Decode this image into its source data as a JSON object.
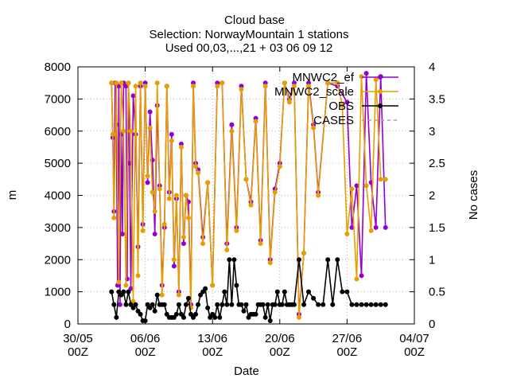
{
  "chart_data": {
    "type": "line",
    "title": "Cloud base",
    "subtitle_lines": [
      "Selection: NorwayMountain      1 stations",
      "Used 00,03,...,21 + 03 06 09 12"
    ],
    "xlabel": "Date",
    "ylabel": "m",
    "y2label": "No cases",
    "ylim": [
      0,
      8000
    ],
    "y2lim": [
      0,
      4
    ],
    "xlim": [
      "2024-05-30T00:00",
      "2024-07-04T00:00"
    ],
    "yticks": [
      0,
      1000,
      2000,
      3000,
      4000,
      5000,
      6000,
      7000,
      8000
    ],
    "y2ticks": [
      "0",
      "0.5",
      "1",
      "1.5",
      "2",
      "2.5",
      "3",
      "3.5",
      "4"
    ],
    "xticks": [
      {
        "t": "2024-05-30T00:00",
        "label1": "30/05",
        "label2": "00Z"
      },
      {
        "t": "2024-06-06T00:00",
        "label1": "06/06",
        "label2": "00Z"
      },
      {
        "t": "2024-06-13T00:00",
        "label1": "13/06",
        "label2": "00Z"
      },
      {
        "t": "2024-06-20T00:00",
        "label1": "20/06",
        "label2": "00Z"
      },
      {
        "t": "2024-06-27T00:00",
        "label1": "27/06",
        "label2": "00Z"
      },
      {
        "t": "2024-07-04T00:00",
        "label1": "04/07",
        "label2": "00Z"
      }
    ],
    "grid": true,
    "legend_position": "top-right",
    "series": [
      {
        "name": "MNWC2_ef",
        "color": "#9400d3",
        "axis": "y1",
        "marker": "circle",
        "x": [
          "2024-06-02T12:00",
          "2024-06-02T15:00",
          "2024-06-02T18:00",
          "2024-06-02T21:00",
          "2024-06-03T00:00",
          "2024-06-03T03:00",
          "2024-06-03T06:00",
          "2024-06-03T09:00",
          "2024-06-03T12:00",
          "2024-06-03T15:00",
          "2024-06-03T18:00",
          "2024-06-04T00:00",
          "2024-06-04T03:00",
          "2024-06-04T06:00",
          "2024-06-04T09:00",
          "2024-06-04T12:00",
          "2024-06-04T18:00",
          "2024-06-05T00:00",
          "2024-06-05T06:00",
          "2024-06-05T12:00",
          "2024-06-05T18:00",
          "2024-06-06T00:00",
          "2024-06-06T06:00",
          "2024-06-06T12:00",
          "2024-06-06T18:00",
          "2024-06-07T00:00",
          "2024-06-07T06:00",
          "2024-06-07T12:00",
          "2024-06-07T18:00",
          "2024-06-08T00:00",
          "2024-06-08T06:00",
          "2024-06-08T12:00",
          "2024-06-08T18:00",
          "2024-06-09T00:00",
          "2024-06-09T06:00",
          "2024-06-09T12:00",
          "2024-06-09T18:00",
          "2024-06-10T00:00",
          "2024-06-10T06:00",
          "2024-06-10T12:00",
          "2024-06-10T18:00",
          "2024-06-11T00:00",
          "2024-06-11T06:00",
          "2024-06-11T12:00",
          "2024-06-12T00:00",
          "2024-06-12T12:00",
          "2024-06-13T00:00",
          "2024-06-13T12:00",
          "2024-06-14T00:00",
          "2024-06-14T12:00",
          "2024-06-15T00:00",
          "2024-06-15T12:00",
          "2024-06-16T00:00",
          "2024-06-16T12:00",
          "2024-06-17T00:00",
          "2024-06-17T12:00",
          "2024-06-18T00:00",
          "2024-06-18T12:00",
          "2024-06-19T00:00",
          "2024-06-19T12:00",
          "2024-06-20T00:00",
          "2024-06-20T12:00",
          "2024-06-21T00:00",
          "2024-06-21T12:00",
          "2024-06-22T00:00",
          "2024-06-22T12:00",
          "2024-06-23T00:00",
          "2024-06-23T12:00",
          "2024-06-24T00:00",
          "2024-06-25T00:00",
          "2024-06-26T00:00",
          "2024-06-27T00:00",
          "2024-06-27T12:00",
          "2024-06-28T00:00",
          "2024-06-28T12:00",
          "2024-06-29T00:00",
          "2024-06-29T12:00",
          "2024-06-30T00:00",
          "2024-06-30T12:00",
          "2024-07-01T00:00"
        ],
        "y": [
          7500,
          5800,
          3500,
          7500,
          6200,
          1200,
          7400,
          600,
          5900,
          2800,
          7500,
          7400,
          1400,
          7500,
          5000,
          1100,
          7100,
          5900,
          2400,
          7400,
          3100,
          7500,
          4400,
          6600,
          5100,
          2800,
          6800,
          4300,
          1200,
          3000,
          7400,
          4100,
          5900,
          1800,
          3900,
          1000,
          5600,
          2500,
          4000,
          3800,
          600,
          7500,
          5000,
          4800,
          2700,
          4400,
          1200,
          7500,
          7500,
          2500,
          6200,
          3000,
          7400,
          4500,
          3800,
          6400,
          2600,
          7500,
          2000,
          4200,
          5000,
          7500,
          7000,
          7500,
          300,
          2200,
          7500,
          6200,
          4100,
          7500,
          7400,
          6900,
          3000,
          4300,
          1500,
          7800,
          4400,
          3000,
          7700,
          3000
        ]
      },
      {
        "name": "MNWC2_scale",
        "color": "#e69f00",
        "axis": "y1",
        "marker": "circle",
        "x": [
          "2024-06-02T12:00",
          "2024-06-02T15:00",
          "2024-06-02T18:00",
          "2024-06-03T00:00",
          "2024-06-03T06:00",
          "2024-06-03T12:00",
          "2024-06-03T18:00",
          "2024-06-04T00:00",
          "2024-06-04T06:00",
          "2024-06-04T12:00",
          "2024-06-04T18:00",
          "2024-06-05T00:00",
          "2024-06-05T06:00",
          "2024-06-05T12:00",
          "2024-06-05T18:00",
          "2024-06-06T00:00",
          "2024-06-06T06:00",
          "2024-06-06T12:00",
          "2024-06-06T18:00",
          "2024-06-07T00:00",
          "2024-06-07T06:00",
          "2024-06-07T12:00",
          "2024-06-07T18:00",
          "2024-06-08T00:00",
          "2024-06-08T06:00",
          "2024-06-08T12:00",
          "2024-06-08T18:00",
          "2024-06-09T00:00",
          "2024-06-09T06:00",
          "2024-06-09T12:00",
          "2024-06-09T18:00",
          "2024-06-10T00:00",
          "2024-06-10T06:00",
          "2024-06-10T12:00",
          "2024-06-10T18:00",
          "2024-06-11T00:00",
          "2024-06-11T06:00",
          "2024-06-11T12:00",
          "2024-06-12T00:00",
          "2024-06-12T12:00",
          "2024-06-13T00:00",
          "2024-06-13T12:00",
          "2024-06-14T00:00",
          "2024-06-14T12:00",
          "2024-06-15T00:00",
          "2024-06-15T12:00",
          "2024-06-16T00:00",
          "2024-06-16T12:00",
          "2024-06-17T00:00",
          "2024-06-17T12:00",
          "2024-06-18T00:00",
          "2024-06-18T12:00",
          "2024-06-19T00:00",
          "2024-06-19T12:00",
          "2024-06-20T00:00",
          "2024-06-20T12:00",
          "2024-06-21T00:00",
          "2024-06-21T12:00",
          "2024-06-22T00:00",
          "2024-06-22T12:00",
          "2024-06-23T00:00",
          "2024-06-23T12:00",
          "2024-06-24T00:00",
          "2024-06-25T00:00",
          "2024-06-26T00:00",
          "2024-06-26T12:00",
          "2024-06-27T00:00",
          "2024-06-27T12:00",
          "2024-06-28T00:00",
          "2024-06-28T12:00",
          "2024-06-29T00:00",
          "2024-06-29T12:00",
          "2024-06-30T00:00",
          "2024-06-30T12:00",
          "2024-07-01T00:00"
        ],
        "y": [
          7500,
          5900,
          3300,
          7500,
          1300,
          7500,
          6000,
          1200,
          7500,
          6000,
          700,
          7400,
          1500,
          7500,
          2900,
          7400,
          4600,
          6100,
          4100,
          3500,
          7500,
          4200,
          900,
          3100,
          7400,
          3900,
          5700,
          2000,
          4000,
          900,
          5500,
          2700,
          4000,
          3300,
          500,
          7400,
          4900,
          4700,
          2500,
          4400,
          1200,
          7400,
          7500,
          2300,
          6000,
          2900,
          7300,
          4500,
          3700,
          6300,
          2500,
          7400,
          1900,
          4100,
          4900,
          7500,
          6900,
          7400,
          200,
          2200,
          7400,
          6100,
          4000,
          7500,
          7500,
          6800,
          2800,
          4200,
          1400,
          7700,
          4300,
          2900,
          7600,
          4500,
          4500
        ]
      },
      {
        "name": "OBS",
        "color": "#000000",
        "axis": "y1",
        "marker": "circle",
        "x": [
          "2024-06-02T12:00",
          "2024-06-02T18:00",
          "2024-06-03T00:00",
          "2024-06-03T06:00",
          "2024-06-03T12:00",
          "2024-06-03T18:00",
          "2024-06-04T00:00",
          "2024-06-04T06:00",
          "2024-06-04T12:00",
          "2024-06-04T18:00",
          "2024-06-05T00:00",
          "2024-06-05T06:00",
          "2024-06-05T12:00",
          "2024-06-05T18:00",
          "2024-06-06T00:00",
          "2024-06-06T06:00",
          "2024-06-06T12:00",
          "2024-06-06T18:00",
          "2024-06-07T00:00",
          "2024-06-07T06:00",
          "2024-06-07T12:00",
          "2024-06-07T18:00",
          "2024-06-08T00:00",
          "2024-06-08T06:00",
          "2024-06-08T12:00",
          "2024-06-08T18:00",
          "2024-06-09T00:00",
          "2024-06-09T06:00",
          "2024-06-09T12:00",
          "2024-06-09T18:00",
          "2024-06-10T00:00",
          "2024-06-10T06:00",
          "2024-06-10T12:00",
          "2024-06-10T18:00",
          "2024-06-11T00:00",
          "2024-06-11T06:00",
          "2024-06-11T12:00",
          "2024-06-11T18:00",
          "2024-06-12T00:00",
          "2024-06-12T06:00",
          "2024-06-12T12:00",
          "2024-06-12T18:00",
          "2024-06-13T00:00",
          "2024-06-13T06:00",
          "2024-06-13T12:00",
          "2024-06-13T18:00",
          "2024-06-14T00:00",
          "2024-06-14T06:00",
          "2024-06-14T12:00",
          "2024-06-14T18:00",
          "2024-06-15T00:00",
          "2024-06-15T06:00",
          "2024-06-15T12:00",
          "2024-06-15T18:00",
          "2024-06-16T00:00",
          "2024-06-16T06:00",
          "2024-06-16T12:00",
          "2024-06-16T18:00",
          "2024-06-17T00:00",
          "2024-06-17T06:00",
          "2024-06-17T12:00",
          "2024-06-17T18:00",
          "2024-06-18T00:00",
          "2024-06-18T06:00",
          "2024-06-18T12:00",
          "2024-06-18T18:00",
          "2024-06-19T00:00",
          "2024-06-19T06:00",
          "2024-06-19T12:00",
          "2024-06-19T18:00",
          "2024-06-20T00:00",
          "2024-06-20T06:00",
          "2024-06-20T12:00",
          "2024-06-20T18:00",
          "2024-06-21T00:00",
          "2024-06-21T06:00",
          "2024-06-21T12:00",
          "2024-06-22T00:00",
          "2024-06-22T12:00",
          "2024-06-23T00:00",
          "2024-06-23T12:00",
          "2024-06-24T00:00",
          "2024-06-24T12:00",
          "2024-06-25T00:00",
          "2024-06-25T12:00",
          "2024-06-26T00:00",
          "2024-06-26T12:00",
          "2024-06-27T00:00",
          "2024-06-27T12:00",
          "2024-06-28T00:00",
          "2024-06-28T12:00",
          "2024-06-29T00:00",
          "2024-06-29T12:00",
          "2024-06-30T00:00",
          "2024-06-30T12:00",
          "2024-07-01T00:00"
        ],
        "y": [
          1000,
          600,
          200,
          1000,
          900,
          1000,
          600,
          1000,
          600,
          500,
          600,
          400,
          300,
          100,
          100,
          600,
          500,
          600,
          400,
          900,
          600,
          600,
          600,
          300,
          200,
          200,
          200,
          300,
          600,
          300,
          200,
          600,
          800,
          300,
          200,
          300,
          600,
          900,
          1000,
          1100,
          500,
          200,
          300,
          200,
          600,
          200,
          600,
          1000,
          600,
          2000,
          600,
          2000,
          1200,
          600,
          600,
          400,
          600,
          200,
          300,
          300,
          300,
          600,
          600,
          600,
          200,
          600,
          100,
          600,
          600,
          1000,
          600,
          600,
          1000,
          600,
          600,
          600,
          600,
          2000,
          600,
          1000,
          800,
          600,
          600,
          2000,
          600,
          2000,
          1000,
          1000,
          600,
          600,
          600,
          600,
          600,
          600,
          600,
          600
        ]
      },
      {
        "name": "CASES",
        "color": "#a0a0a0",
        "axis": "y2",
        "marker": "none",
        "dash": true,
        "x": [],
        "y": []
      }
    ]
  }
}
